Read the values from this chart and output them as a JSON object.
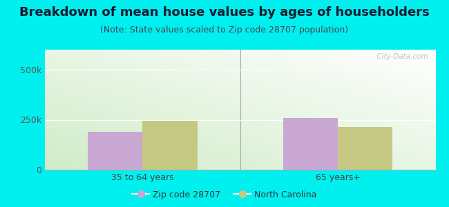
{
  "title": "Breakdown of mean house values by ages of householders",
  "subtitle": "(Note: State values scaled to Zip code 28707 population)",
  "categories": [
    "35 to 64 years",
    "65 years+"
  ],
  "zip_values": [
    190000,
    257000
  ],
  "state_values": [
    245000,
    215000
  ],
  "zip_color": "#c9a8d4",
  "state_color": "#c5c882",
  "zip_label": "Zip code 28707",
  "state_label": "North Carolina",
  "ylim": [
    0,
    600000
  ],
  "yticks": [
    0,
    250000,
    500000
  ],
  "ytick_labels": [
    "0",
    "250k",
    "500k"
  ],
  "outer_bg": "#00efef",
  "bar_width": 0.28,
  "title_fontsize": 13,
  "subtitle_fontsize": 9,
  "watermark": "  City-Data.com",
  "grad_left": "#c8e6c0",
  "grad_right": "#f0f8ef"
}
